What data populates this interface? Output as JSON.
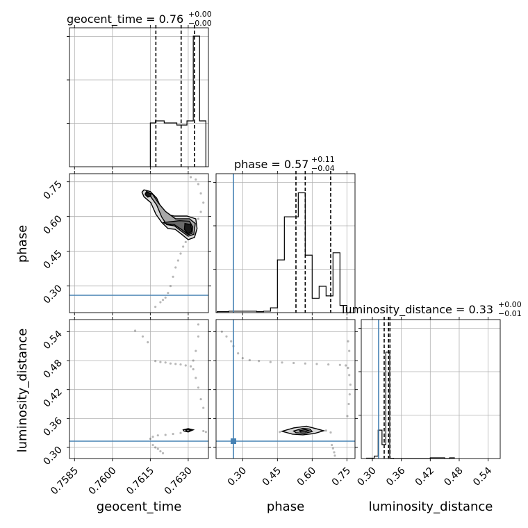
{
  "chart_data": {
    "type": "corner",
    "parameters": [
      "geocent_time",
      "phase",
      "luminosity_distance"
    ],
    "truths": {
      "phase": 0.26,
      "luminosity_distance": 0.313
    },
    "colors": {
      "truth": "#4682b4",
      "hist": "#000000",
      "grid": "#b0b0b0",
      "samples": "#000000"
    },
    "grid": true,
    "diagonal": [
      {
        "param": "geocent_time",
        "title_main": "geocent_time = 0.76",
        "title_sup": "+0.00",
        "title_sub": "−0.00",
        "xlim": [
          0.7583,
          0.7638
        ],
        "bin_edges": [
          0.7615,
          0.7617,
          0.76205,
          0.76255,
          0.76295,
          0.7632,
          0.76345,
          0.7637
        ],
        "counts": [
          0.63,
          0.66,
          0.63,
          0.6,
          0.66,
          1.88,
          0.66
        ],
        "quantiles": [
          0.76172,
          0.76272,
          0.76325
        ],
        "ylim": [
          0,
          2.0
        ],
        "tick_labels": []
      },
      {
        "param": "phase",
        "title_main": "phase = 0.57",
        "title_sup": "+0.11",
        "title_sub": "−0.04",
        "xlim": [
          0.185,
          0.785
        ],
        "bin_edges": [
          0.19,
          0.24,
          0.31,
          0.36,
          0.39,
          0.42,
          0.45,
          0.48,
          0.51,
          0.54,
          0.57,
          0.6,
          0.63,
          0.66,
          0.69,
          0.72,
          0.75
        ],
        "counts": [
          0.02,
          0.03,
          0.03,
          0.02,
          0.03,
          0.1,
          1.1,
          2.0,
          2.0,
          2.5,
          1.2,
          0.3,
          0.55,
          0.35,
          1.25,
          0.15
        ],
        "quantiles": [
          0.53,
          0.57,
          0.68
        ],
        "ylim": [
          0,
          2.9
        ],
        "tick_labels": []
      },
      {
        "param": "luminosity_distance",
        "title_main": "luminosity_distance = 0.33",
        "title_sup": "+0.00",
        "title_sub": "−0.01",
        "xlim": [
          0.277,
          0.565
        ],
        "bin_edges": [
          0.288,
          0.304,
          0.312,
          0.32,
          0.328,
          0.336,
          0.344,
          0.35,
          0.36,
          0.42,
          0.45,
          0.46,
          0.47
        ],
        "counts": [
          0.03,
          0.2,
          2.35,
          1.15,
          8.8,
          0.02,
          0.0,
          0.0,
          0.0,
          0.06,
          0.0,
          0.06
        ],
        "quantiles": [
          0.3245,
          0.3335,
          0.3365
        ],
        "ylim": [
          0,
          11.5
        ],
        "tick_labels": [
          "0.30",
          "0.36",
          "0.42",
          "0.48",
          "0.54"
        ]
      }
    ],
    "axes": {
      "geocent_time": {
        "label": "geocent_time",
        "lim": [
          0.7583,
          0.7638
        ],
        "ticks": [
          0.7585,
          0.76,
          0.7615,
          0.763
        ],
        "tick_labels": [
          "0.7585",
          "0.7600",
          "0.7615",
          "0.7630"
        ]
      },
      "phase": {
        "label": "phase",
        "lim": [
          0.185,
          0.785
        ],
        "ticks": [
          0.3,
          0.45,
          0.6,
          0.75
        ],
        "tick_labels": [
          "0.30",
          "0.45",
          "0.60",
          "0.75"
        ]
      },
      "luminosity_distance": {
        "label": "luminosity_distance",
        "lim": [
          0.277,
          0.565
        ],
        "ticks": [
          0.3,
          0.36,
          0.42,
          0.48,
          0.54
        ],
        "tick_labels": [
          "0.30",
          "0.36",
          "0.42",
          "0.48",
          "0.54"
        ]
      }
    },
    "scatter_panels": [
      {
        "x_param": "geocent_time",
        "y_param": "phase",
        "samples": [
          [
            0.7617,
            0.21
          ],
          [
            0.7619,
            0.23
          ],
          [
            0.762,
            0.24
          ],
          [
            0.7621,
            0.25
          ],
          [
            0.7622,
            0.27
          ],
          [
            0.7623,
            0.3
          ],
          [
            0.7624,
            0.34
          ],
          [
            0.7625,
            0.38
          ],
          [
            0.7626,
            0.41
          ],
          [
            0.7627,
            0.44
          ],
          [
            0.7628,
            0.47
          ],
          [
            0.7629,
            0.49
          ],
          [
            0.763,
            0.51
          ],
          [
            0.7632,
            0.53
          ],
          [
            0.7633,
            0.56
          ],
          [
            0.7634,
            0.59
          ],
          [
            0.7635,
            0.62
          ],
          [
            0.7636,
            0.66
          ],
          [
            0.7635,
            0.7
          ],
          [
            0.7634,
            0.74
          ],
          [
            0.7633,
            0.76
          ],
          [
            0.7631,
            0.77
          ],
          [
            0.7614,
            0.7
          ],
          [
            0.7616,
            0.68
          ],
          [
            0.7618,
            0.66
          ],
          [
            0.762,
            0.62
          ],
          [
            0.7622,
            0.59
          ],
          [
            0.7625,
            0.585
          ],
          [
            0.7627,
            0.58
          ],
          [
            0.7629,
            0.56
          ],
          [
            0.7631,
            0.55
          ],
          [
            0.7632,
            0.54
          ],
          [
            0.7633,
            0.545
          ],
          [
            0.7624,
            0.55
          ]
        ],
        "contours": [
          [
            [
              0.76125,
              0.715
            ],
            [
              0.7615,
              0.708
            ],
            [
              0.76175,
              0.68
            ],
            [
              0.7619,
              0.645
            ],
            [
              0.76215,
              0.61
            ],
            [
              0.76245,
              0.602
            ],
            [
              0.76295,
              0.602
            ],
            [
              0.7633,
              0.59
            ],
            [
              0.76335,
              0.548
            ],
            [
              0.76325,
              0.51
            ],
            [
              0.763,
              0.5
            ],
            [
              0.76272,
              0.525
            ],
            [
              0.76248,
              0.545
            ],
            [
              0.7622,
              0.548
            ],
            [
              0.76195,
              0.575
            ],
            [
              0.76172,
              0.61
            ],
            [
              0.76152,
              0.66
            ],
            [
              0.76125,
              0.685
            ],
            [
              0.76117,
              0.705
            ]
          ],
          [
            [
              0.76135,
              0.708
            ],
            [
              0.7616,
              0.695
            ],
            [
              0.76182,
              0.658
            ],
            [
              0.7621,
              0.622
            ],
            [
              0.7625,
              0.59
            ],
            [
              0.76305,
              0.59
            ],
            [
              0.76328,
              0.57
            ],
            [
              0.76322,
              0.523
            ],
            [
              0.763,
              0.515
            ],
            [
              0.76275,
              0.535
            ],
            [
              0.76245,
              0.56
            ],
            [
              0.76215,
              0.565
            ],
            [
              0.76195,
              0.598
            ],
            [
              0.76175,
              0.65
            ],
            [
              0.7615,
              0.688
            ],
            [
              0.7613,
              0.698
            ]
          ],
          [
            [
              0.762,
              0.574
            ],
            [
              0.76265,
              0.582
            ],
            [
              0.76305,
              0.58
            ],
            [
              0.76318,
              0.555
            ],
            [
              0.76315,
              0.527
            ],
            [
              0.763,
              0.522
            ],
            [
              0.76275,
              0.543
            ],
            [
              0.76245,
              0.565
            ],
            [
              0.76215,
              0.568
            ]
          ],
          [
            [
              0.76135,
              0.706
            ],
            [
              0.7615,
              0.7
            ],
            [
              0.76152,
              0.688
            ],
            [
              0.7614,
              0.684
            ],
            [
              0.7613,
              0.694
            ]
          ],
          [
            [
              0.76287,
              0.57
            ],
            [
              0.7631,
              0.565
            ],
            [
              0.76314,
              0.535
            ],
            [
              0.76298,
              0.526
            ],
            [
              0.76285,
              0.545
            ]
          ]
        ],
        "truth_y": 0.26
      },
      {
        "x_param": "geocent_time",
        "y_param": "luminosity_distance",
        "samples": [
          [
            0.7609,
            0.542
          ],
          [
            0.7612,
            0.53
          ],
          [
            0.7614,
            0.518
          ],
          [
            0.7617,
            0.479
          ],
          [
            0.7619,
            0.477
          ],
          [
            0.7621,
            0.476
          ],
          [
            0.7623,
            0.474
          ],
          [
            0.7625,
            0.473
          ],
          [
            0.7627,
            0.472
          ],
          [
            0.7629,
            0.47
          ],
          [
            0.7631,
            0.468
          ],
          [
            0.7632,
            0.462
          ],
          [
            0.7633,
            0.444
          ],
          [
            0.7634,
            0.424
          ],
          [
            0.7635,
            0.4
          ],
          [
            0.7636,
            0.382
          ],
          [
            0.7632,
            0.48
          ],
          [
            0.7633,
            0.5
          ],
          [
            0.7634,
            0.53
          ],
          [
            0.7634,
            0.555
          ],
          [
            0.7616,
            0.305
          ],
          [
            0.7617,
            0.3
          ],
          [
            0.7618,
            0.297
          ],
          [
            0.7619,
            0.292
          ],
          [
            0.762,
            0.288
          ],
          [
            0.7615,
            0.318
          ],
          [
            0.7616,
            0.322
          ],
          [
            0.7618,
            0.325
          ],
          [
            0.7621,
            0.326
          ],
          [
            0.7624,
            0.328
          ],
          [
            0.7627,
            0.33
          ],
          [
            0.7636,
            0.334
          ],
          [
            0.7637,
            0.332
          ]
        ],
        "contours": [
          [
            [
              0.7628,
              0.3365
            ],
            [
              0.763,
              0.339
            ],
            [
              0.7632,
              0.3365
            ],
            [
              0.763,
              0.332
            ],
            [
              0.76283,
              0.334
            ]
          ],
          [
            [
              0.7629,
              0.336
            ],
            [
              0.763,
              0.3375
            ],
            [
              0.7631,
              0.336
            ],
            [
              0.763,
              0.3335
            ],
            [
              0.76292,
              0.3345
            ]
          ]
        ],
        "truth_y": 0.313
      },
      {
        "x_param": "phase",
        "y_param": "luminosity_distance",
        "samples": [
          [
            0.21,
            0.54
          ],
          [
            0.23,
            0.53
          ],
          [
            0.25,
            0.52
          ],
          [
            0.26,
            0.51
          ],
          [
            0.28,
            0.495
          ],
          [
            0.3,
            0.485
          ],
          [
            0.33,
            0.481
          ],
          [
            0.37,
            0.479
          ],
          [
            0.42,
            0.477
          ],
          [
            0.47,
            0.476
          ],
          [
            0.52,
            0.475
          ],
          [
            0.57,
            0.474
          ],
          [
            0.62,
            0.473
          ],
          [
            0.67,
            0.472
          ],
          [
            0.72,
            0.471
          ],
          [
            0.745,
            0.47
          ],
          [
            0.755,
            0.465
          ],
          [
            0.76,
            0.45
          ],
          [
            0.765,
            0.43
          ],
          [
            0.762,
            0.41
          ],
          [
            0.758,
            0.39
          ],
          [
            0.752,
            0.365
          ],
          [
            0.755,
            0.52
          ],
          [
            0.76,
            0.5
          ],
          [
            0.685,
            0.305
          ],
          [
            0.69,
            0.298
          ],
          [
            0.695,
            0.29
          ],
          [
            0.698,
            0.283
          ],
          [
            0.48,
            0.333
          ],
          [
            0.46,
            0.332
          ],
          [
            0.66,
            0.335
          ],
          [
            0.68,
            0.331
          ]
        ],
        "contours": [
          [
            [
              0.47,
              0.3335
            ],
            [
              0.52,
              0.3405
            ],
            [
              0.575,
              0.344
            ],
            [
              0.62,
              0.3385
            ],
            [
              0.65,
              0.3345
            ],
            [
              0.61,
              0.329
            ],
            [
              0.56,
              0.326
            ],
            [
              0.515,
              0.3275
            ]
          ],
          [
            [
              0.52,
              0.334
            ],
            [
              0.56,
              0.3395
            ],
            [
              0.59,
              0.338
            ],
            [
              0.6,
              0.333
            ],
            [
              0.565,
              0.329
            ],
            [
              0.53,
              0.3305
            ]
          ],
          [
            [
              0.545,
              0.3345
            ],
            [
              0.57,
              0.337
            ],
            [
              0.585,
              0.335
            ],
            [
              0.57,
              0.332
            ],
            [
              0.55,
              0.332
            ]
          ]
        ],
        "truth_x": 0.26,
        "truth_y": 0.313,
        "truth_marker": true
      }
    ]
  }
}
